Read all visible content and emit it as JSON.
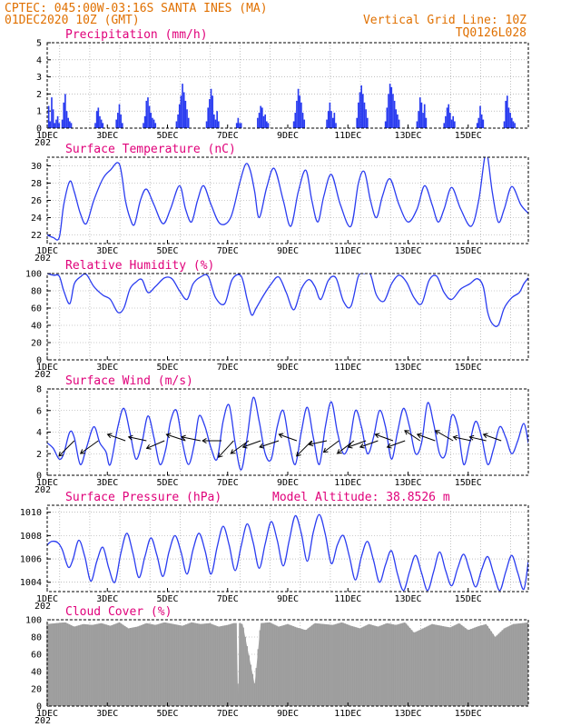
{
  "header": {
    "line1": "CPTEC:   045:00W-03:16S   SANTA INES (MA)",
    "line2": "01DEC2020 10Z (GMT)",
    "right1": "Vertical Grid Line: 10Z",
    "right2": "TQ0126L028"
  },
  "x_ticks": [
    "1DEC",
    "3DEC",
    "5DEC",
    "7DEC",
    "9DEC",
    "11DEC",
    "13DEC",
    "15DEC"
  ],
  "year_fragment": "202",
  "panels": {
    "precip": {
      "title": "Precipitation (mm/h)"
    },
    "temp": {
      "title": "Surface Temperature (nC)"
    },
    "rh": {
      "title": "Relative Humidity (%)"
    },
    "wind": {
      "title": "Surface Wind (m/s)"
    },
    "pres": {
      "title": "Surface Pressure (hPa)",
      "extra": "Model Altitude: 38.8526 m"
    },
    "cloud": {
      "title": "Cloud Cover (%)"
    }
  },
  "colors": {
    "series": "#2a3cf0",
    "precip_bar": "#2a3cf0",
    "cloud_fill": "#a8a8a8",
    "header": "#e07000",
    "panel_title": "#e0007a"
  },
  "chart_data": [
    {
      "type": "bar",
      "title": "Precipitation (mm/h)",
      "x_unit": "days since 01DEC2020 00Z",
      "ylim": [
        0,
        5
      ],
      "yticks": [
        0,
        1,
        2,
        3,
        4,
        5
      ],
      "x": [
        0.05,
        0.1,
        0.15,
        0.2,
        0.25,
        0.3,
        0.35,
        0.4,
        0.5,
        0.55,
        0.6,
        0.65,
        0.7,
        0.75,
        0.8,
        1.6,
        1.65,
        1.7,
        1.75,
        1.8,
        1.85,
        2.3,
        2.35,
        2.4,
        2.45,
        2.5,
        3.2,
        3.25,
        3.3,
        3.35,
        3.4,
        3.45,
        3.5,
        3.55,
        3.6,
        4.3,
        4.35,
        4.4,
        4.45,
        4.5,
        4.55,
        4.6,
        4.65,
        4.7,
        5.3,
        5.35,
        5.4,
        5.45,
        5.5,
        5.55,
        5.6,
        5.65,
        5.7,
        6.3,
        6.35,
        6.4,
        6.45,
        7.0,
        7.05,
        7.1,
        7.15,
        7.2,
        7.25,
        7.3,
        7.35,
        8.2,
        8.25,
        8.3,
        8.35,
        8.4,
        8.45,
        8.5,
        8.55,
        9.3,
        9.35,
        9.4,
        9.45,
        9.5,
        9.55,
        9.6,
        10.3,
        10.35,
        10.4,
        10.45,
        10.5,
        10.55,
        10.6,
        10.65,
        11.25,
        11.3,
        11.35,
        11.4,
        11.45,
        11.5,
        11.55,
        11.6,
        11.65,
        11.7,
        12.3,
        12.35,
        12.4,
        12.45,
        12.5,
        12.55,
        12.6,
        13.2,
        13.25,
        13.3,
        13.35,
        13.4,
        13.45,
        13.5,
        13.55,
        14.3,
        14.35,
        14.4,
        14.45,
        14.5,
        15.2,
        15.25,
        15.3,
        15.35,
        15.4,
        15.45,
        15.5,
        15.55
      ],
      "values": [
        1.3,
        0.4,
        1.8,
        1.1,
        0.3,
        0.5,
        0.7,
        0.3,
        0.5,
        1.5,
        2.0,
        1.0,
        0.6,
        0.4,
        0.3,
        0.3,
        1.0,
        1.2,
        0.7,
        0.5,
        0.3,
        0.5,
        0.9,
        1.4,
        0.8,
        0.3,
        0.3,
        0.7,
        1.6,
        1.8,
        1.3,
        0.9,
        0.6,
        0.5,
        0.3,
        0.4,
        0.8,
        1.4,
        1.9,
        2.6,
        2.1,
        1.6,
        1.1,
        0.6,
        0.4,
        1.2,
        1.7,
        2.3,
        1.9,
        0.8,
        0.5,
        1.0,
        0.4,
        0.3,
        0.6,
        0.3,
        0.3,
        0.6,
        0.9,
        1.3,
        1.2,
        0.7,
        0.8,
        0.4,
        0.3,
        0.4,
        0.9,
        1.6,
        2.3,
        1.9,
        1.5,
        0.9,
        0.5,
        0.5,
        1.0,
        1.5,
        1.0,
        0.6,
        0.9,
        0.3,
        0.6,
        1.5,
        2.1,
        2.5,
        2.0,
        1.5,
        1.1,
        0.6,
        0.4,
        1.2,
        2.0,
        2.6,
        2.4,
        2.0,
        1.6,
        1.1,
        0.8,
        0.5,
        0.4,
        1.0,
        1.8,
        1.5,
        0.9,
        1.4,
        0.6,
        0.3,
        0.7,
        1.2,
        1.4,
        0.9,
        0.5,
        0.7,
        0.4,
        0.3,
        0.6,
        1.3,
        0.8,
        0.5,
        0.4,
        1.6,
        1.9,
        1.2,
        0.9,
        0.6,
        0.4,
        0.3
      ]
    },
    {
      "type": "line",
      "title": "Surface Temperature (nC)",
      "x_unit": "days since 01DEC2020 00Z",
      "ylim": [
        21,
        31
      ],
      "yticks": [
        22,
        24,
        26,
        28,
        30
      ],
      "x": [
        0,
        0.2,
        0.4,
        0.55,
        0.75,
        0.9,
        1.1,
        1.3,
        1.55,
        1.85,
        2.1,
        2.4,
        2.6,
        2.75,
        2.9,
        3.1,
        3.3,
        3.55,
        3.85,
        4.1,
        4.4,
        4.6,
        4.8,
        5.0,
        5.2,
        5.45,
        5.75,
        6.1,
        6.4,
        6.6,
        6.75,
        6.9,
        7.05,
        7.3,
        7.55,
        7.85,
        8.1,
        8.35,
        8.6,
        8.8,
        9.0,
        9.2,
        9.45,
        9.75,
        10.1,
        10.35,
        10.55,
        10.75,
        10.95,
        11.15,
        11.4,
        11.7,
        12.0,
        12.3,
        12.55,
        12.8,
        13.0,
        13.2,
        13.45,
        13.75,
        14.1,
        14.35,
        14.55,
        14.65,
        14.8,
        15.0,
        15.2,
        15.45,
        15.75,
        16.0
      ],
      "values": [
        22.0,
        21.7,
        21.7,
        25.5,
        28.2,
        27.0,
        24.5,
        23.3,
        26.0,
        28.5,
        29.5,
        30.2,
        26.0,
        24.0,
        23.2,
        26.0,
        27.3,
        25.5,
        23.3,
        25.0,
        27.7,
        25.0,
        23.5,
        26.0,
        27.7,
        25.5,
        23.3,
        24.0,
        28.0,
        30.2,
        29.5,
        27.0,
        24.0,
        27.5,
        29.7,
        26.0,
        23.0,
        27.0,
        29.5,
        26.0,
        23.5,
        26.5,
        29.0,
        25.5,
        23.0,
        28.0,
        29.3,
        26.0,
        24.0,
        26.5,
        28.5,
        25.5,
        23.5,
        25.0,
        27.7,
        25.5,
        23.5,
        25.0,
        27.5,
        25.0,
        23.0,
        26.0,
        31.0,
        31.0,
        27.0,
        23.5,
        25.0,
        27.6,
        25.5,
        24.5
      ]
    },
    {
      "type": "line",
      "title": "Relative Humidity (%)",
      "x_unit": "days since 01DEC2020 00Z",
      "ylim": [
        0,
        100
      ],
      "yticks": [
        0,
        20,
        40,
        60,
        80,
        100
      ],
      "x": [
        0,
        0.2,
        0.4,
        0.55,
        0.75,
        0.9,
        1.1,
        1.3,
        1.55,
        1.85,
        2.1,
        2.35,
        2.55,
        2.75,
        2.95,
        3.15,
        3.35,
        3.6,
        3.9,
        4.15,
        4.4,
        4.65,
        4.85,
        5.1,
        5.35,
        5.6,
        5.9,
        6.15,
        6.45,
        6.65,
        6.8,
        6.95,
        7.2,
        7.45,
        7.7,
        7.95,
        8.2,
        8.45,
        8.7,
        8.9,
        9.1,
        9.35,
        9.6,
        9.85,
        10.1,
        10.35,
        10.55,
        10.75,
        10.95,
        11.2,
        11.45,
        11.7,
        11.95,
        12.2,
        12.45,
        12.7,
        12.95,
        13.2,
        13.45,
        13.75,
        14.05,
        14.3,
        14.5,
        14.65,
        14.8,
        15.0,
        15.2,
        15.45,
        15.7,
        15.85,
        16.0
      ],
      "values": [
        100,
        98,
        97,
        80,
        65,
        88,
        96,
        99,
        85,
        75,
        70,
        55,
        60,
        82,
        90,
        93,
        78,
        85,
        95,
        94,
        80,
        70,
        88,
        96,
        97,
        72,
        65,
        93,
        97,
        70,
        52,
        60,
        75,
        88,
        96,
        78,
        58,
        82,
        93,
        85,
        70,
        92,
        95,
        68,
        62,
        97,
        100,
        99,
        75,
        68,
        88,
        98,
        90,
        72,
        65,
        92,
        97,
        78,
        70,
        82,
        88,
        94,
        85,
        55,
        42,
        40,
        60,
        72,
        78,
        88,
        95
      ]
    },
    {
      "type": "line",
      "title": "Surface Wind (m/s)",
      "x_unit": "days since 01DEC2020 00Z",
      "ylim": [
        0,
        8
      ],
      "yticks": [
        0,
        2,
        4,
        6,
        8
      ],
      "x": [
        0,
        0.2,
        0.4,
        0.55,
        0.75,
        0.9,
        1.1,
        1.3,
        1.55,
        1.75,
        1.95,
        2.1,
        2.35,
        2.55,
        2.75,
        2.95,
        3.15,
        3.35,
        3.55,
        3.75,
        3.95,
        4.1,
        4.3,
        4.5,
        4.7,
        4.9,
        5.05,
        5.25,
        5.45,
        5.65,
        5.85,
        6.05,
        6.25,
        6.45,
        6.65,
        6.85,
        7.05,
        7.25,
        7.45,
        7.65,
        7.85,
        8.05,
        8.25,
        8.45,
        8.65,
        8.85,
        9.05,
        9.25,
        9.45,
        9.65,
        9.85,
        10.05,
        10.25,
        10.45,
        10.65,
        10.85,
        11.05,
        11.25,
        11.45,
        11.65,
        11.85,
        12.05,
        12.25,
        12.45,
        12.65,
        12.85,
        13.05,
        13.25,
        13.45,
        13.65,
        13.85,
        14.05,
        14.25,
        14.45,
        14.65,
        14.85,
        15.05,
        15.25,
        15.45,
        15.65,
        15.85,
        16.0
      ],
      "values": [
        3.0,
        2.5,
        1.5,
        2.0,
        4.0,
        3.5,
        1.0,
        2.5,
        4.5,
        3.0,
        2.2,
        1.0,
        4.5,
        6.2,
        4.0,
        1.5,
        3.0,
        5.5,
        3.5,
        1.0,
        2.5,
        5.0,
        6.0,
        3.0,
        1.0,
        3.0,
        5.5,
        4.5,
        2.5,
        1.5,
        5.0,
        6.5,
        3.0,
        0.5,
        3.5,
        7.2,
        5.0,
        2.0,
        1.5,
        4.5,
        6.0,
        3.0,
        1.0,
        4.0,
        6.3,
        3.5,
        1.0,
        4.5,
        6.8,
        4.0,
        2.0,
        3.0,
        6.0,
        4.5,
        2.0,
        3.5,
        6.0,
        4.5,
        1.5,
        4.0,
        6.2,
        4.5,
        2.0,
        3.0,
        6.7,
        4.8,
        2.0,
        2.0,
        5.5,
        4.5,
        1.0,
        3.0,
        5.0,
        3.5,
        1.0,
        2.5,
        4.5,
        3.5,
        2.0,
        3.2,
        4.8,
        3.0
      ],
      "vectors": [
        {
          "t": 0.9,
          "u": -1.2,
          "v": -1.2
        },
        {
          "t": 1.7,
          "u": -1.4,
          "v": -1.0
        },
        {
          "t": 2.6,
          "u": -1.4,
          "v": 0.5
        },
        {
          "t": 3.3,
          "u": -1.4,
          "v": 0.3
        },
        {
          "t": 3.9,
          "u": -1.4,
          "v": -0.6
        },
        {
          "t": 4.6,
          "u": -1.5,
          "v": 0.5
        },
        {
          "t": 5.1,
          "u": -1.5,
          "v": 0.3
        },
        {
          "t": 5.8,
          "u": -1.5,
          "v": 0.0
        },
        {
          "t": 6.2,
          "u": -1.2,
          "v": -1.3
        },
        {
          "t": 6.7,
          "u": -1.4,
          "v": -1.0
        },
        {
          "t": 7.1,
          "u": -1.4,
          "v": -0.5
        },
        {
          "t": 7.7,
          "u": -1.5,
          "v": -0.5
        },
        {
          "t": 8.3,
          "u": -1.4,
          "v": 0.5
        },
        {
          "t": 8.8,
          "u": -1.2,
          "v": -1.2
        },
        {
          "t": 9.3,
          "u": -1.4,
          "v": -0.3
        },
        {
          "t": 9.7,
          "u": -1.2,
          "v": -0.9
        },
        {
          "t": 10.2,
          "u": -1.3,
          "v": -1.0
        },
        {
          "t": 10.6,
          "u": -1.4,
          "v": -0.5
        },
        {
          "t": 11.0,
          "u": -1.4,
          "v": -0.5
        },
        {
          "t": 11.5,
          "u": -1.4,
          "v": 0.5
        },
        {
          "t": 11.9,
          "u": -1.4,
          "v": -0.5
        },
        {
          "t": 12.4,
          "u": -1.2,
          "v": 0.8
        },
        {
          "t": 12.9,
          "u": -1.4,
          "v": 0.5
        },
        {
          "t": 13.5,
          "u": -1.4,
          "v": 0.8
        },
        {
          "t": 14.1,
          "u": -1.4,
          "v": 0.3
        },
        {
          "t": 14.6,
          "u": -1.3,
          "v": 0.3
        },
        {
          "t": 15.1,
          "u": -1.4,
          "v": 0.5
        }
      ]
    },
    {
      "type": "line",
      "title": "Surface Pressure (hPa)",
      "x_unit": "days since 01DEC2020 00Z",
      "ylim": [
        1003.2,
        1010.6
      ],
      "yticks": [
        1004,
        1006,
        1008,
        1010
      ],
      "x": [
        0,
        0.15,
        0.35,
        0.5,
        0.7,
        0.85,
        1.05,
        1.25,
        1.45,
        1.65,
        1.85,
        2.05,
        2.25,
        2.45,
        2.65,
        2.85,
        3.05,
        3.25,
        3.45,
        3.65,
        3.85,
        4.05,
        4.25,
        4.45,
        4.65,
        4.85,
        5.05,
        5.25,
        5.45,
        5.65,
        5.85,
        6.05,
        6.25,
        6.45,
        6.65,
        6.85,
        7.05,
        7.25,
        7.45,
        7.65,
        7.85,
        8.05,
        8.25,
        8.45,
        8.65,
        8.85,
        9.05,
        9.25,
        9.45,
        9.65,
        9.85,
        10.05,
        10.25,
        10.45,
        10.65,
        10.85,
        11.05,
        11.25,
        11.45,
        11.65,
        11.85,
        12.05,
        12.25,
        12.45,
        12.65,
        12.85,
        13.05,
        13.25,
        13.45,
        13.65,
        13.85,
        14.05,
        14.25,
        14.45,
        14.65,
        14.85,
        15.05,
        15.25,
        15.45,
        15.65,
        15.85,
        16.0
      ],
      "values": [
        1007.2,
        1007.5,
        1007.4,
        1006.8,
        1005.3,
        1005.9,
        1007.6,
        1006.2,
        1004.1,
        1005.8,
        1007.0,
        1005.2,
        1004.0,
        1006.5,
        1008.2,
        1006.5,
        1004.4,
        1006.2,
        1007.8,
        1006.3,
        1004.5,
        1006.6,
        1008.0,
        1006.6,
        1004.7,
        1006.8,
        1008.2,
        1006.7,
        1004.7,
        1007.0,
        1008.8,
        1007.2,
        1005.0,
        1007.1,
        1009.0,
        1007.4,
        1005.2,
        1007.3,
        1009.2,
        1007.6,
        1005.4,
        1007.6,
        1009.7,
        1008.2,
        1005.8,
        1008.3,
        1009.8,
        1008.1,
        1005.6,
        1007.2,
        1008.0,
        1006.2,
        1004.2,
        1006.2,
        1007.5,
        1005.9,
        1004.0,
        1005.5,
        1006.7,
        1004.7,
        1003.3,
        1004.9,
        1006.3,
        1004.8,
        1003.3,
        1004.9,
        1006.6,
        1005.0,
        1003.7,
        1005.2,
        1006.4,
        1005.0,
        1003.6,
        1005.1,
        1006.2,
        1004.7,
        1003.3,
        1004.9,
        1006.3,
        1004.8,
        1003.4,
        1005.8
      ]
    },
    {
      "type": "area",
      "title": "Cloud Cover (%)",
      "x_unit": "days since 01DEC2020 00Z",
      "ylim": [
        0,
        100
      ],
      "yticks": [
        0,
        20,
        40,
        60,
        80,
        100
      ],
      "x": [
        0,
        0.3,
        0.6,
        0.9,
        1.2,
        1.5,
        1.8,
        2.1,
        2.4,
        2.7,
        3.0,
        3.3,
        3.6,
        3.9,
        4.2,
        4.5,
        4.8,
        5.1,
        5.4,
        5.7,
        6.0,
        6.2,
        6.3,
        6.35,
        6.4,
        6.5,
        6.7,
        6.9,
        7.1,
        7.4,
        7.7,
        8.0,
        8.3,
        8.6,
        8.9,
        9.2,
        9.5,
        9.8,
        10.1,
        10.4,
        10.7,
        11.0,
        11.3,
        11.6,
        11.9,
        12.2,
        12.5,
        12.8,
        13.1,
        13.4,
        13.7,
        14.0,
        14.3,
        14.6,
        14.9,
        15.2,
        15.5,
        15.8,
        16.0
      ],
      "values": [
        95,
        96,
        97,
        92,
        95,
        94,
        96,
        93,
        97,
        90,
        92,
        96,
        94,
        97,
        95,
        93,
        97,
        95,
        96,
        92,
        94,
        96,
        96,
        5,
        96,
        95,
        60,
        25,
        96,
        97,
        92,
        95,
        91,
        88,
        96,
        95,
        94,
        97,
        93,
        90,
        95,
        92,
        96,
        94,
        97,
        85,
        90,
        95,
        93,
        91,
        96,
        88,
        92,
        95,
        80,
        90,
        95,
        96,
        97
      ]
    }
  ]
}
